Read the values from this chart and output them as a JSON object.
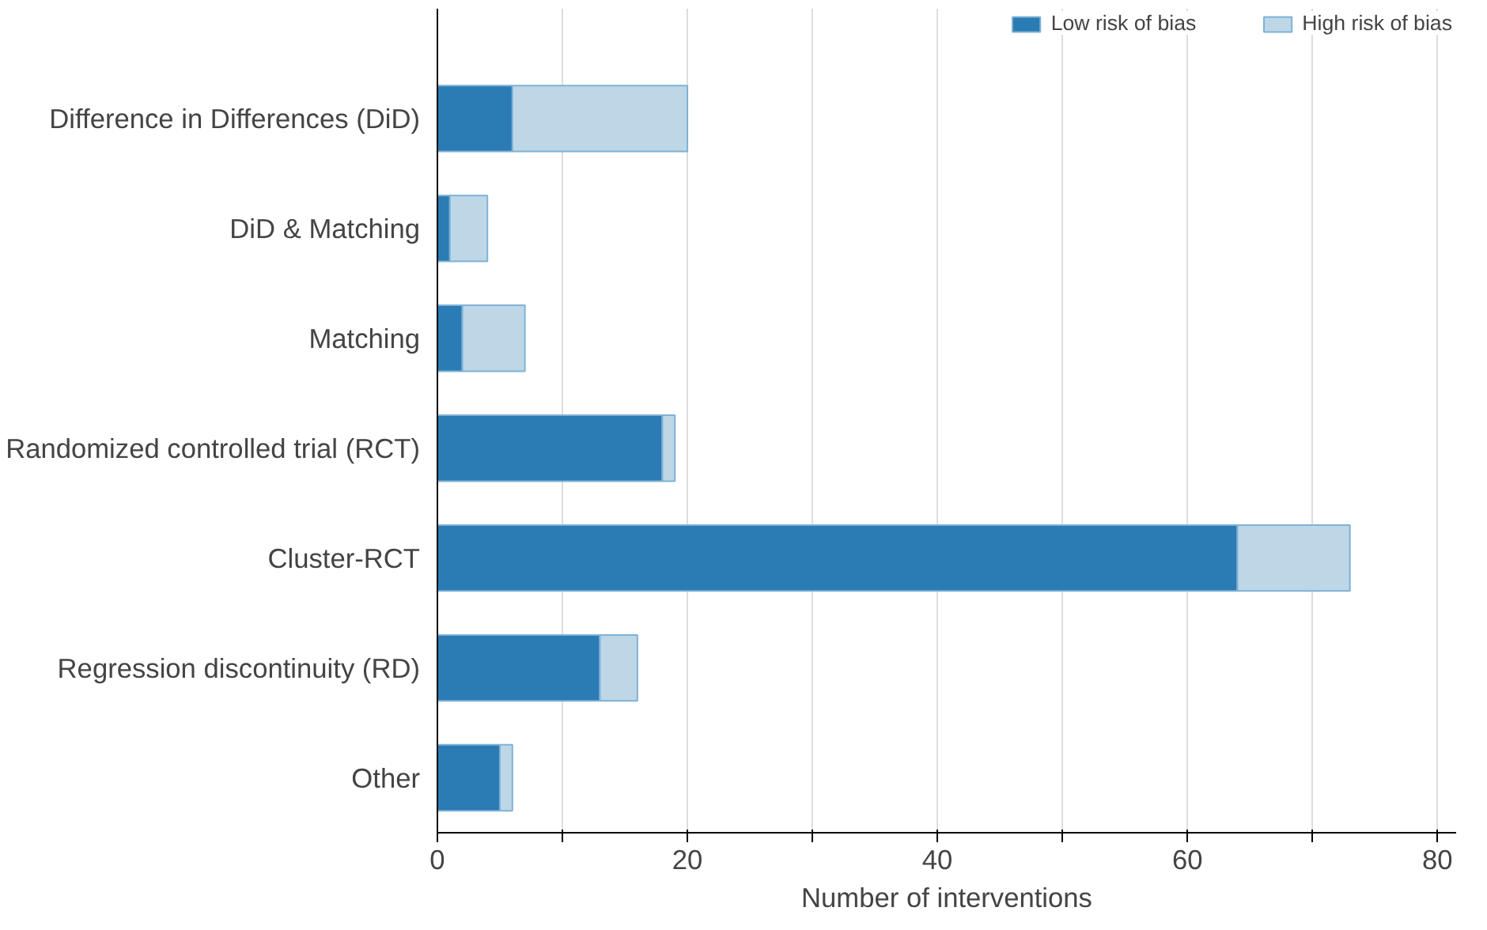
{
  "chart_data": {
    "type": "bar",
    "orientation": "horizontal",
    "stacked": true,
    "categories": [
      "Difference in Differences (DiD)",
      "DiD & Matching",
      "Matching",
      "Randomized controlled trial (RCT)",
      "Cluster-RCT",
      "Regression discontinuity (RD)",
      "Other"
    ],
    "series": [
      {
        "name": "Low risk of bias",
        "color": "#2b7bb4",
        "values": [
          6,
          1,
          2,
          18,
          64,
          13,
          5
        ]
      },
      {
        "name": "High risk of bias",
        "color": "#bdd7e7",
        "values": [
          14,
          3,
          5,
          1,
          9,
          3,
          1
        ]
      }
    ],
    "xlabel": "Number of interventions",
    "xlim": [
      0,
      81.5
    ],
    "xticks": [
      0,
      {
        "value": 10,
        "label": null
      },
      20,
      {
        "value": 30,
        "label": null
      },
      40,
      {
        "value": 50,
        "label": null
      },
      60,
      {
        "value": 70,
        "label": null
      },
      80
    ],
    "grid": "x",
    "legend": "top"
  }
}
